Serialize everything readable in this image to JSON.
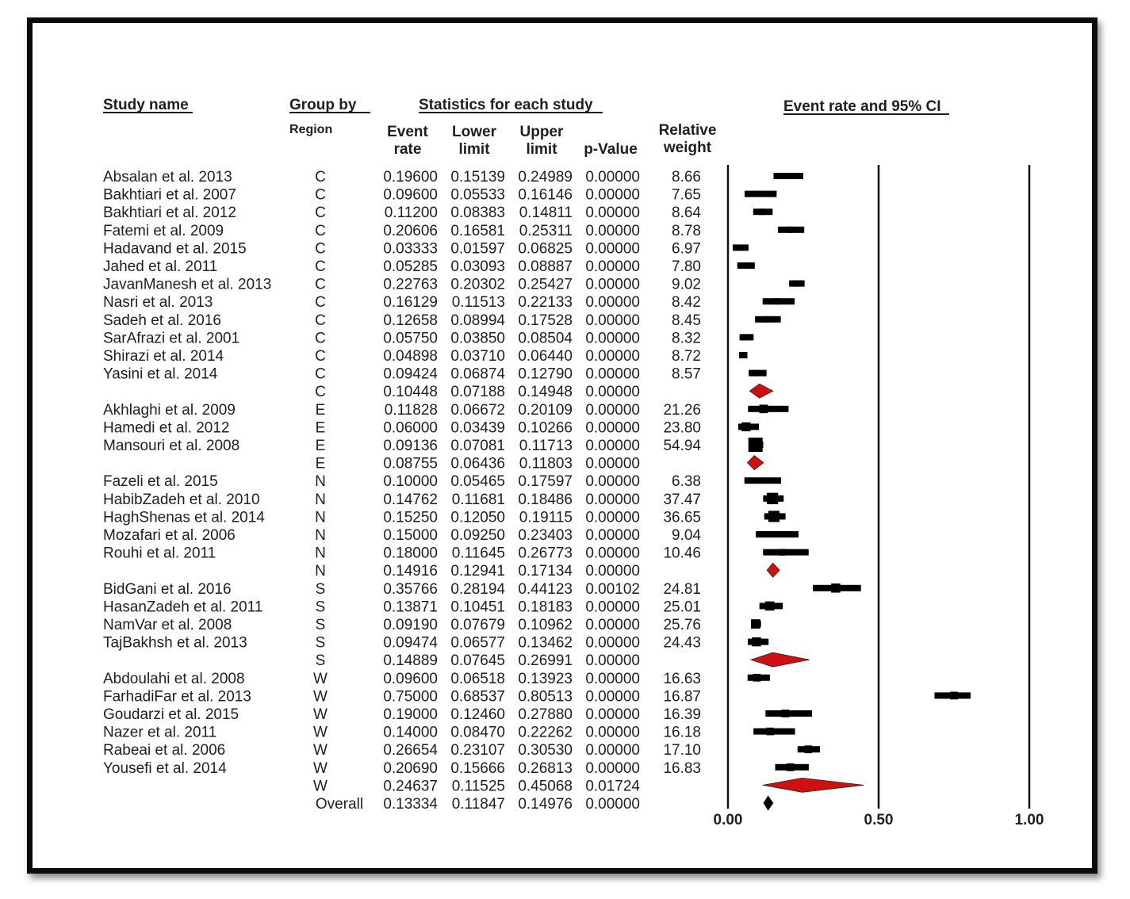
{
  "headers": {
    "study_name": "Study name",
    "group_by": "Group by",
    "region": "Region",
    "stats": "Statistics for each study",
    "plot_title": "Event rate and 95% CI",
    "event_rate_1": "Event",
    "event_rate_2": "rate",
    "lower_1": "Lower",
    "lower_2": "limit",
    "upper_1": "Upper",
    "upper_2": "limit",
    "pvalue": "p-Value",
    "relweight_1": "Relative",
    "relweight_2": "weight"
  },
  "chart_data": {
    "type": "forest",
    "xlim": [
      0,
      1
    ],
    "ticks": [
      "0.00",
      "0.50",
      "1.00"
    ],
    "tick_values": [
      0,
      0.5,
      1
    ],
    "rows": [
      {
        "study": "Absalan et al. 2013",
        "group": "C",
        "rate": "0.19600",
        "lower": "0.15139",
        "upper": "0.24989",
        "p": "0.00000",
        "weight": "8.66",
        "kind": "study"
      },
      {
        "study": "Bakhtiari et al. 2007",
        "group": "C",
        "rate": "0.09600",
        "lower": "0.05533",
        "upper": "0.16146",
        "p": "0.00000",
        "weight": "7.65",
        "kind": "study"
      },
      {
        "study": "Bakhtiari et al. 2012",
        "group": "C",
        "rate": "0.11200",
        "lower": "0.08383",
        "upper": "0.14811",
        "p": "0.00000",
        "weight": "8.64",
        "kind": "study"
      },
      {
        "study": "Fatemi et al. 2009",
        "group": "C",
        "rate": "0.20606",
        "lower": "0.16581",
        "upper": "0.25311",
        "p": "0.00000",
        "weight": "8.78",
        "kind": "study"
      },
      {
        "study": "Hadavand et al. 2015",
        "group": "C",
        "rate": "0.03333",
        "lower": "0.01597",
        "upper": "0.06825",
        "p": "0.00000",
        "weight": "6.97",
        "kind": "study"
      },
      {
        "study": "Jahed et al. 2011",
        "group": "C",
        "rate": "0.05285",
        "lower": "0.03093",
        "upper": "0.08887",
        "p": "0.00000",
        "weight": "7.80",
        "kind": "study"
      },
      {
        "study": "JavanManesh et al. 2013",
        "group": "C",
        "rate": "0.22763",
        "lower": "0.20302",
        "upper": "0.25427",
        "p": "0.00000",
        "weight": "9.02",
        "kind": "study"
      },
      {
        "study": "Nasri et al. 2013",
        "group": "C",
        "rate": "0.16129",
        "lower": "0.11513",
        "upper": "0.22133",
        "p": "0.00000",
        "weight": "8.42",
        "kind": "study"
      },
      {
        "study": "Sadeh et al. 2016",
        "group": "C",
        "rate": "0.12658",
        "lower": "0.08994",
        "upper": "0.17528",
        "p": "0.00000",
        "weight": "8.45",
        "kind": "study"
      },
      {
        "study": "SarAfrazi et al. 2001",
        "group": "C",
        "rate": "0.05750",
        "lower": "0.03850",
        "upper": "0.08504",
        "p": "0.00000",
        "weight": "8.32",
        "kind": "study"
      },
      {
        "study": "Shirazi et al. 2014",
        "group": "C",
        "rate": "0.04898",
        "lower": "0.03710",
        "upper": "0.06440",
        "p": "0.00000",
        "weight": "8.72",
        "kind": "study"
      },
      {
        "study": "Yasini et al. 2014",
        "group": "C",
        "rate": "0.09424",
        "lower": "0.06874",
        "upper": "0.12790",
        "p": "0.00000",
        "weight": "8.57",
        "kind": "study"
      },
      {
        "study": "",
        "group": "C",
        "rate": "0.10448",
        "lower": "0.07188",
        "upper": "0.14948",
        "p": "0.00000",
        "weight": "",
        "kind": "subgroup"
      },
      {
        "study": "Akhlaghi et al. 2009",
        "group": "E",
        "rate": "0.11828",
        "lower": "0.06672",
        "upper": "0.20109",
        "p": "0.00000",
        "weight": "21.26",
        "kind": "study"
      },
      {
        "study": "Hamedi et al. 2012",
        "group": "E",
        "rate": "0.06000",
        "lower": "0.03439",
        "upper": "0.10266",
        "p": "0.00000",
        "weight": "23.80",
        "kind": "study"
      },
      {
        "study": "Mansouri et al. 2008",
        "group": "E",
        "rate": "0.09136",
        "lower": "0.07081",
        "upper": "0.11713",
        "p": "0.00000",
        "weight": "54.94",
        "kind": "study"
      },
      {
        "study": "",
        "group": "E",
        "rate": "0.08755",
        "lower": "0.06436",
        "upper": "0.11803",
        "p": "0.00000",
        "weight": "",
        "kind": "subgroup"
      },
      {
        "study": "Fazeli et al. 2015",
        "group": "N",
        "rate": "0.10000",
        "lower": "0.05465",
        "upper": "0.17597",
        "p": "0.00000",
        "weight": "6.38",
        "kind": "study"
      },
      {
        "study": "HabibZadeh et al. 2010",
        "group": "N",
        "rate": "0.14762",
        "lower": "0.11681",
        "upper": "0.18486",
        "p": "0.00000",
        "weight": "37.47",
        "kind": "study"
      },
      {
        "study": "HaghShenas et al. 2014",
        "group": "N",
        "rate": "0.15250",
        "lower": "0.12050",
        "upper": "0.19115",
        "p": "0.00000",
        "weight": "36.65",
        "kind": "study"
      },
      {
        "study": "Mozafari et al. 2006",
        "group": "N",
        "rate": "0.15000",
        "lower": "0.09250",
        "upper": "0.23403",
        "p": "0.00000",
        "weight": "9.04",
        "kind": "study"
      },
      {
        "study": "Rouhi et al. 2011",
        "group": "N",
        "rate": "0.18000",
        "lower": "0.11645",
        "upper": "0.26773",
        "p": "0.00000",
        "weight": "10.46",
        "kind": "study"
      },
      {
        "study": "",
        "group": "N",
        "rate": "0.14916",
        "lower": "0.12941",
        "upper": "0.17134",
        "p": "0.00000",
        "weight": "",
        "kind": "subgroup"
      },
      {
        "study": "BidGani et al. 2016",
        "group": "S",
        "rate": "0.35766",
        "lower": "0.28194",
        "upper": "0.44123",
        "p": "0.00102",
        "weight": "24.81",
        "kind": "study"
      },
      {
        "study": "HasanZadeh et al. 2011",
        "group": "S",
        "rate": "0.13871",
        "lower": "0.10451",
        "upper": "0.18183",
        "p": "0.00000",
        "weight": "25.01",
        "kind": "study"
      },
      {
        "study": "NamVar et al. 2008",
        "group": "S",
        "rate": "0.09190",
        "lower": "0.07679",
        "upper": "0.10962",
        "p": "0.00000",
        "weight": "25.76",
        "kind": "study"
      },
      {
        "study": "TajBakhsh et al. 2013",
        "group": "S",
        "rate": "0.09474",
        "lower": "0.06577",
        "upper": "0.13462",
        "p": "0.00000",
        "weight": "24.43",
        "kind": "study"
      },
      {
        "study": "",
        "group": "S",
        "rate": "0.14889",
        "lower": "0.07645",
        "upper": "0.26991",
        "p": "0.00000",
        "weight": "",
        "kind": "subgroup"
      },
      {
        "study": "Abdoulahi et al. 2008",
        "group": "W",
        "rate": "0.09600",
        "lower": "0.06518",
        "upper": "0.13923",
        "p": "0.00000",
        "weight": "16.63",
        "kind": "study"
      },
      {
        "study": "FarhadiFar et al. 2013",
        "group": "W",
        "rate": "0.75000",
        "lower": "0.68537",
        "upper": "0.80513",
        "p": "0.00000",
        "weight": "16.87",
        "kind": "study"
      },
      {
        "study": "Goudarzi et al. 2015",
        "group": "W",
        "rate": "0.19000",
        "lower": "0.12460",
        "upper": "0.27880",
        "p": "0.00000",
        "weight": "16.39",
        "kind": "study"
      },
      {
        "study": "Nazer et al. 2011",
        "group": "W",
        "rate": "0.14000",
        "lower": "0.08470",
        "upper": "0.22262",
        "p": "0.00000",
        "weight": "16.18",
        "kind": "study"
      },
      {
        "study": "Rabeai et al. 2006",
        "group": "W",
        "rate": "0.26654",
        "lower": "0.23107",
        "upper": "0.30530",
        "p": "0.00000",
        "weight": "17.10",
        "kind": "study"
      },
      {
        "study": "Yousefi et al. 2014",
        "group": "W",
        "rate": "0.20690",
        "lower": "0.15666",
        "upper": "0.26813",
        "p": "0.00000",
        "weight": "16.83",
        "kind": "study"
      },
      {
        "study": "",
        "group": "W",
        "rate": "0.24637",
        "lower": "0.11525",
        "upper": "0.45068",
        "p": "0.01724",
        "weight": "",
        "kind": "subgroup"
      },
      {
        "study": "",
        "group": "Overall",
        "rate": "0.13334",
        "lower": "0.11847",
        "upper": "0.14976",
        "p": "0.00000",
        "weight": "",
        "kind": "overall"
      }
    ]
  },
  "colors": {
    "subgroup_diamond": "#d01010",
    "overall_diamond": "#000000",
    "marks": "#000000"
  }
}
